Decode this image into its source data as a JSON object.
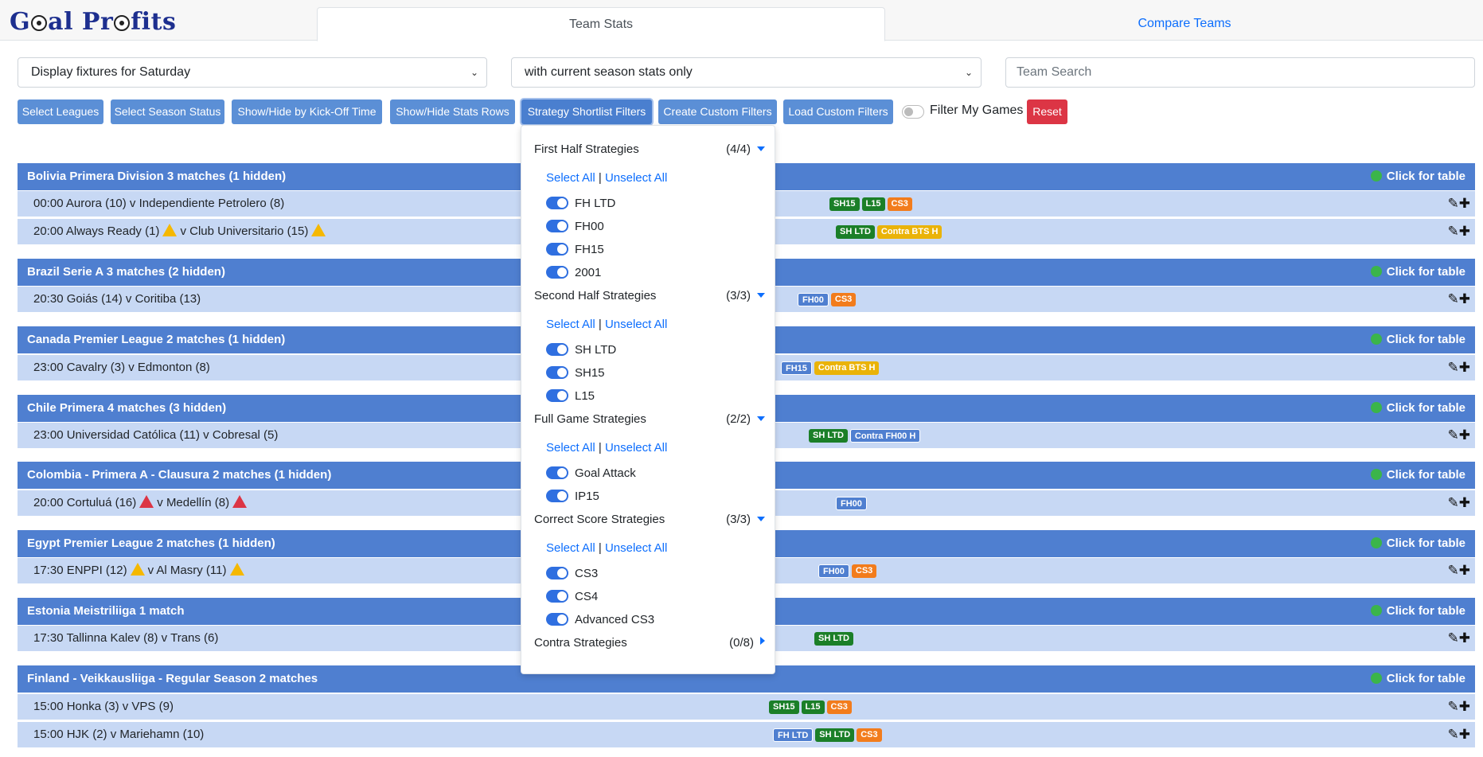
{
  "app": {
    "logo": "Goal Profits",
    "tabs": [
      {
        "label": "Team Stats"
      },
      {
        "label": "Compare Teams"
      }
    ]
  },
  "filters": {
    "fixtures_select": "Display fixtures for Saturday",
    "stats_select": "with current season stats only",
    "team_search_placeholder": "Team Search"
  },
  "toolbar": {
    "select_leagues": "Select Leagues",
    "select_season_status": "Select Season Status",
    "show_hide_kickoff": "Show/Hide by Kick-Off Time",
    "show_hide_stats": "Show/Hide Stats Rows",
    "strategy_shortlist": "Strategy Shortlist Filters",
    "create_custom": "Create Custom Filters",
    "load_custom": "Load Custom Filters",
    "filter_my_games": "Filter My Games",
    "reset": "Reset"
  },
  "click_for_table": "Click for table",
  "leagues": [
    {
      "name": "Bolivia Primera Division   3 matches (1 hidden)",
      "matches": [
        {
          "time": "00:00",
          "home": "Aurora (10)",
          "away": "Independiente Petrolero (8)",
          "badges": [
            "SH15",
            "L15",
            "CS3"
          ]
        },
        {
          "time": "20:00",
          "home": "Always Ready (1)",
          "away": "Club Universitario (15)",
          "badges": [
            "SH LTD",
            "Contra BTS H"
          ]
        }
      ]
    },
    {
      "name": "Brazil Serie A   3 matches (2 hidden)",
      "matches": [
        {
          "time": "20:30",
          "home": "Goiás (14)",
          "away": "Coritiba (13)",
          "badges": [
            "FH00",
            "CS3"
          ]
        }
      ]
    },
    {
      "name": "Canada Premier League   2 matches (1 hidden)",
      "matches": [
        {
          "time": "23:00",
          "home": "Cavalry (3)",
          "away": "Edmonton (8)",
          "badges": [
            "FH15",
            "Contra BTS H"
          ]
        }
      ]
    },
    {
      "name": "Chile Primera   4 matches (3 hidden)",
      "matches": [
        {
          "time": "23:00",
          "home": "Universidad Católica (11)",
          "away": "Cobresal (5)",
          "badges": [
            "SH LTD",
            "Contra FH00 H"
          ]
        }
      ]
    },
    {
      "name": "Colombia - Primera A - Clausura   2 matches (1 hidden)",
      "matches": [
        {
          "time": "20:00",
          "home": "Cortuluá (16)",
          "away": "Medellín (8)",
          "badges": [
            "FH00"
          ]
        }
      ]
    },
    {
      "name": "Egypt Premier League   2 matches (1 hidden)",
      "matches": [
        {
          "time": "17:30",
          "home": "ENPPI (12)",
          "away": "Al Masry (11)",
          "badges": [
            "FH00",
            "CS3"
          ]
        }
      ]
    },
    {
      "name": "Estonia Meistriliiga   1 match",
      "matches": [
        {
          "time": "17:30",
          "home": "Tallinna Kalev (8)",
          "away": "Trans (6)",
          "badges": [
            "SH LTD"
          ]
        }
      ]
    },
    {
      "name": "Finland - Veikkausliiga - Regular Season   2 matches",
      "matches": [
        {
          "time": "15:00",
          "home": "Honka (3)",
          "away": "VPS (9)",
          "badges": [
            "SH15",
            "L15",
            "CS3"
          ]
        },
        {
          "time": "15:00",
          "home": "HJK (2)",
          "away": "Mariehamn (10)",
          "badges": [
            "FH LTD",
            "SH LTD",
            "CS3"
          ]
        }
      ]
    }
  ],
  "strategy_dropdown": {
    "select_all": "Select All",
    "separator": "|",
    "unselect_all": "Unselect All",
    "categories": [
      {
        "name": "First Half Strategies",
        "count": "(4/4)",
        "options": [
          "FH LTD",
          "FH00",
          "FH15",
          "2001"
        ]
      },
      {
        "name": "Second Half Strategies",
        "count": "(3/3)",
        "options": [
          "SH LTD",
          "SH15",
          "L15"
        ]
      },
      {
        "name": "Full Game Strategies",
        "count": "(2/2)",
        "options": [
          "Goal Attack",
          "IP15"
        ]
      },
      {
        "name": "Correct Score Strategies",
        "count": "(3/3)",
        "options": [
          "CS3",
          "CS4",
          "Advanced CS3"
        ]
      },
      {
        "name": "Contra Strategies",
        "count": "(0/8)",
        "options": []
      }
    ]
  },
  "colors": {
    "league_header": "#4f7fd0",
    "match_row": "#c7d8f4",
    "badge_green": "#1b7f28",
    "badge_orange": "#f27c1c",
    "badge_yellow": "#eab308",
    "reset": "#dc3545"
  },
  "icons": {
    "edit": "pencil-icon",
    "add": "plus-icon",
    "warning": "warning-icon",
    "table": "green-dot-icon"
  }
}
